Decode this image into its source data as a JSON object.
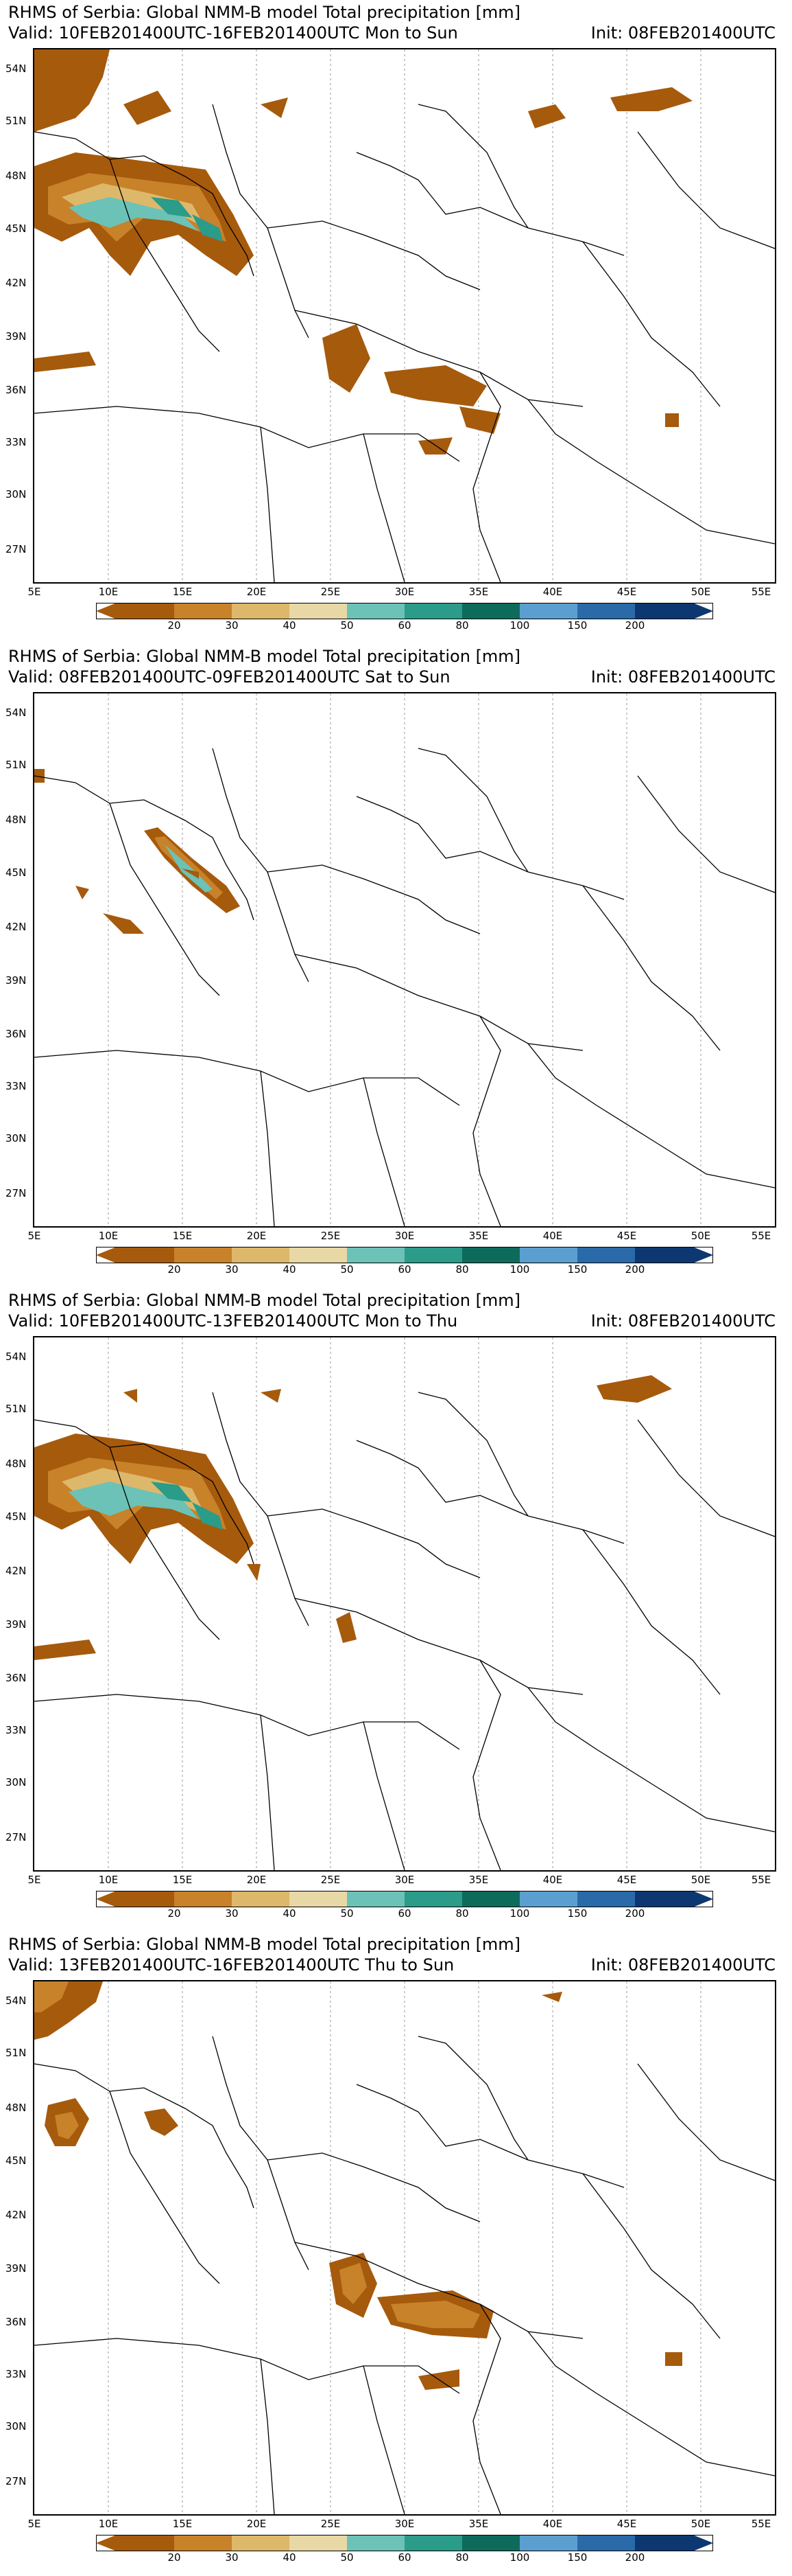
{
  "colors": {
    "land": "#ffffff",
    "border": "#000000",
    "grid": "#999999",
    "levels": [
      "#a65a0c",
      "#c8822a",
      "#ddb86a",
      "#6cc2b6",
      "#2b9b8a",
      "#0d6b5b",
      "#5b9fd0",
      "#2a6aa8",
      "#0d3770"
    ]
  },
  "common": {
    "ylabels": [
      "54N",
      "51N",
      "48N",
      "45N",
      "42N",
      "39N",
      "36N",
      "33N",
      "30N",
      "27N"
    ],
    "xlabels": [
      "5E",
      "10E",
      "15E",
      "20E",
      "25E",
      "30E",
      "35E",
      "40E",
      "45E",
      "50E",
      "55E"
    ],
    "colorbar_labels": [
      "20",
      "30",
      "40",
      "50",
      "60",
      "80",
      "100",
      "150",
      "200"
    ]
  },
  "panels": [
    {
      "line1": "RHMS of Serbia: Global NMM-B model Total precipitation [mm]",
      "line2": "Valid: 10FEB201400UTC-16FEB201400UTC Mon to Sun",
      "init": "Init: 08FEB201400UTC"
    },
    {
      "line1": "RHMS of Serbia: Global NMM-B model Total precipitation [mm]",
      "line2": "Valid: 08FEB201400UTC-09FEB201400UTC Sat to Sun",
      "init": "Init: 08FEB201400UTC"
    },
    {
      "line1": "RHMS of Serbia: Global NMM-B model Total precipitation [mm]",
      "line2": "Valid: 10FEB201400UTC-13FEB201400UTC Mon to Thu",
      "init": "Init: 08FEB201400UTC"
    },
    {
      "line1": "RHMS of Serbia: Global NMM-B model Total precipitation [mm]",
      "line2": "Valid: 13FEB201400UTC-16FEB201400UTC Thu to Sun",
      "init": "Init: 08FEB201400UTC"
    }
  ]
}
